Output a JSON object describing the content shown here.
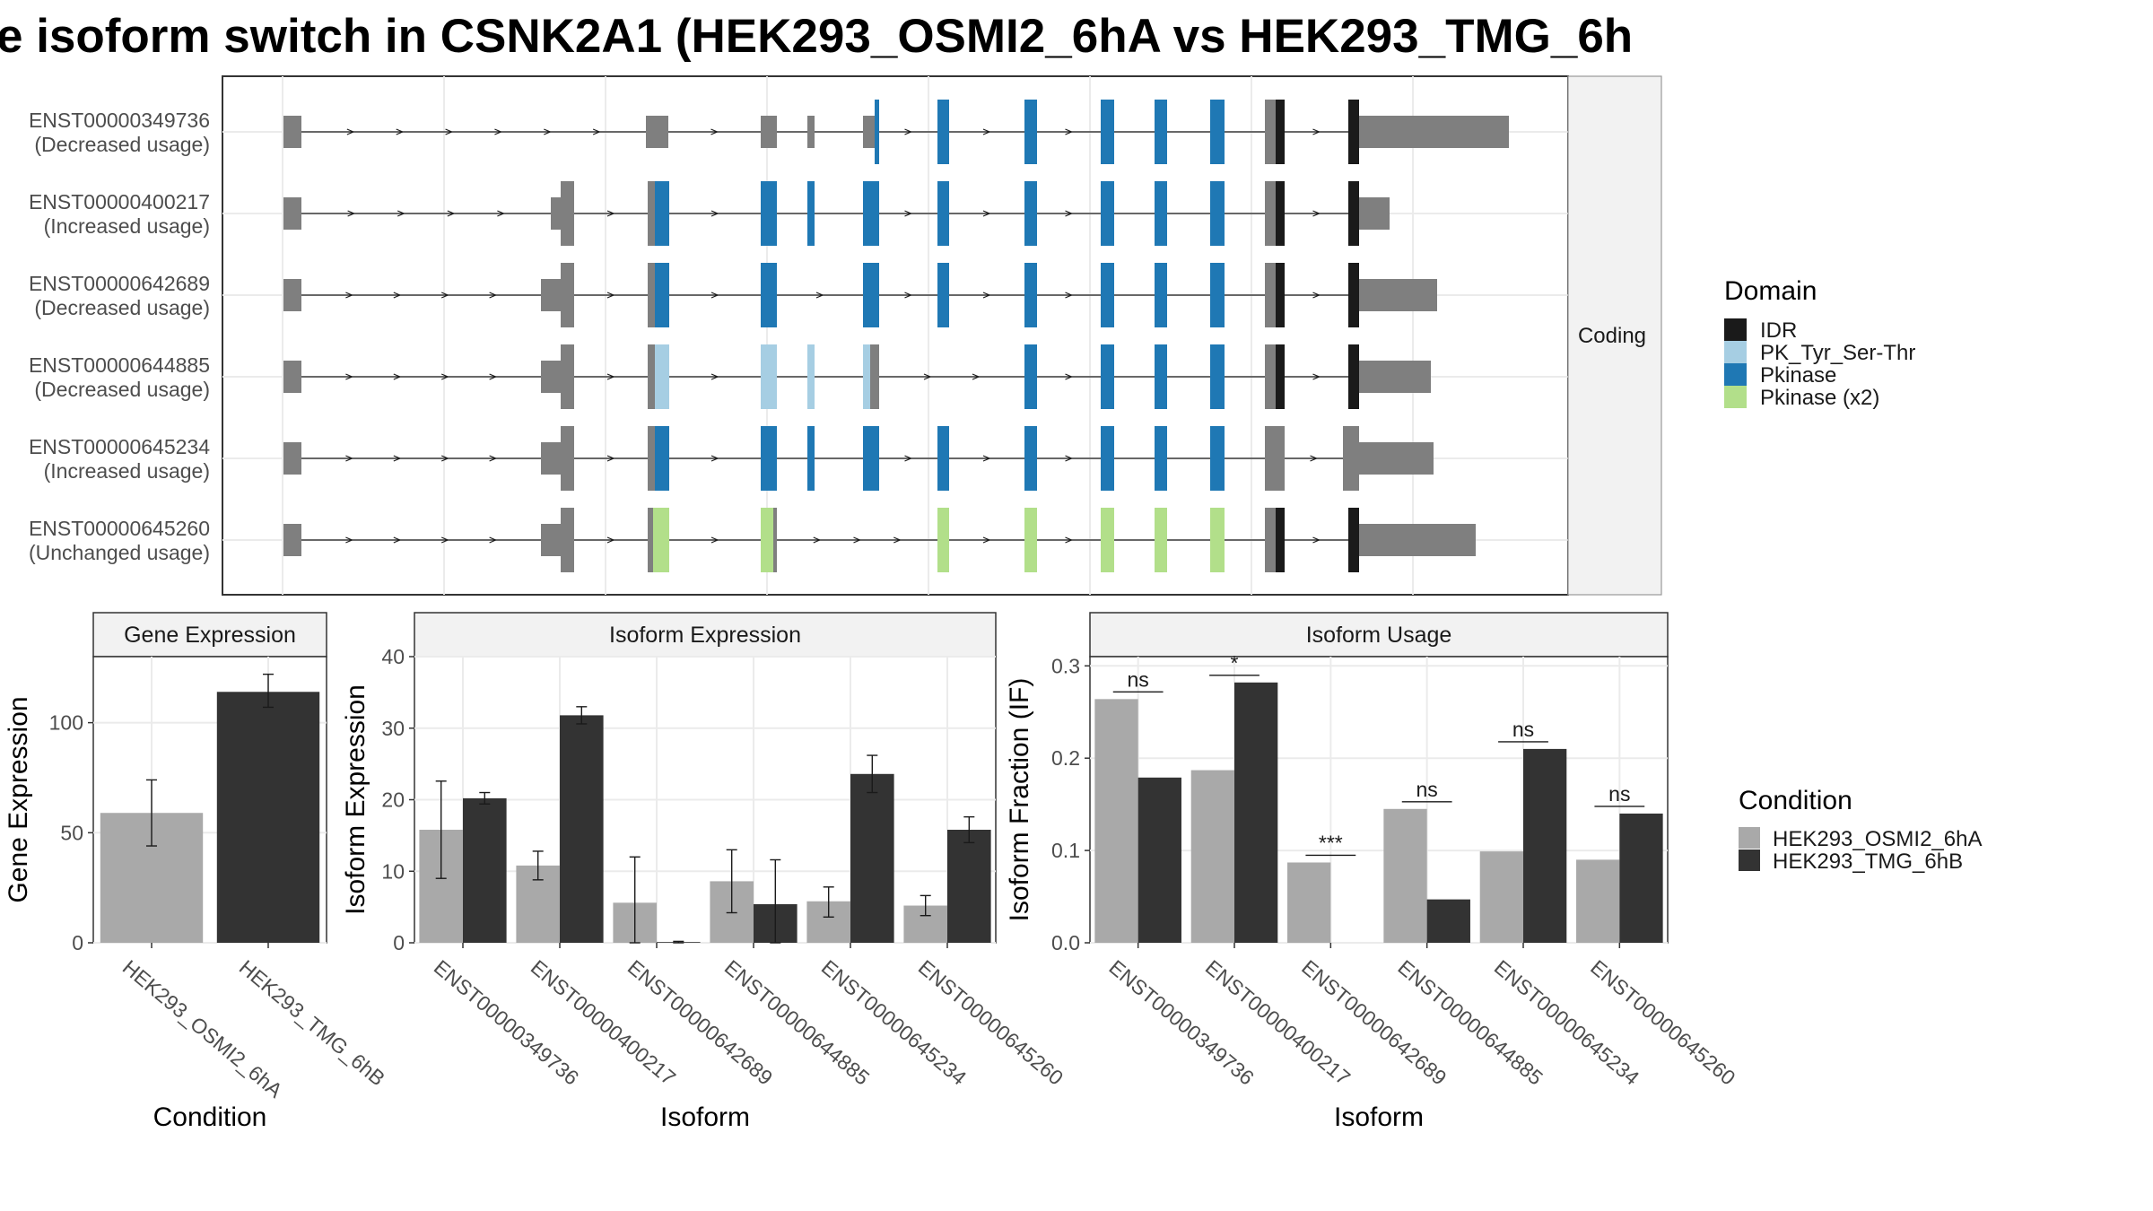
{
  "title": "e isoform switch in CSNK2A1 (HEK293_OSMI2_6hA vs HEK293_TMG_6h",
  "colors": {
    "idr": "#1a1a1a",
    "pk_tyr_ser_thr": "#a6cee3",
    "pkinase": "#1f78b4",
    "pkinase_x2": "#b2df8a",
    "noncoding_exon": "#7f7f7f",
    "cond_a": "#a9a9a9",
    "cond_b": "#333333"
  },
  "isoform_plot": {
    "strip_label": "Coding",
    "transcripts": [
      {
        "id": "ENST00000349736",
        "usage": "(Decreased usage)"
      },
      {
        "id": "ENST00000400217",
        "usage": "(Increased usage)"
      },
      {
        "id": "ENST00000642689",
        "usage": "(Decreased usage)"
      },
      {
        "id": "ENST00000644885",
        "usage": "(Decreased usage)"
      },
      {
        "id": "ENST00000645234",
        "usage": "(Increased usage)"
      },
      {
        "id": "ENST00000645260",
        "usage": "(Unchanged usage)"
      }
    ]
  },
  "legend_domain": {
    "title": "Domain",
    "items": [
      "IDR",
      "PK_Tyr_Ser-Thr",
      "Pkinase",
      "Pkinase (x2)"
    ]
  },
  "legend_condition": {
    "title": "Condition",
    "items": [
      "HEK293_OSMI2_6hA",
      "HEK293_TMG_6hB"
    ]
  },
  "chart_data": [
    {
      "type": "bar",
      "title": "Gene Expression",
      "xlabel": "Condition",
      "ylabel": "Gene Expression",
      "categories": [
        "HEK293_OSMI2_6hA",
        "HEK293_TMG_6hB"
      ],
      "values": [
        59,
        114
      ],
      "error_low": [
        44,
        107
      ],
      "error_high": [
        74,
        122
      ],
      "ylim": [
        0,
        130
      ],
      "yticks": [
        0,
        50,
        100
      ]
    },
    {
      "type": "bar",
      "title": "Isoform Expression",
      "xlabel": "Isoform",
      "ylabel": "Isoform Expression",
      "categories": [
        "ENST00000349736",
        "ENST00000400217",
        "ENST00000642689",
        "ENST00000644885",
        "ENST00000645234",
        "ENST00000645260"
      ],
      "series": [
        {
          "name": "HEK293_OSMI2_6hA",
          "values": [
            15.8,
            10.8,
            5.6,
            8.6,
            5.8,
            5.2
          ],
          "error_low": [
            9.0,
            8.8,
            0,
            4.2,
            3.6,
            3.8
          ],
          "error_high": [
            22.6,
            12.8,
            12.0,
            13.0,
            7.8,
            6.6
          ]
        },
        {
          "name": "HEK293_TMG_6hB",
          "values": [
            20.2,
            31.8,
            0.1,
            5.4,
            23.6,
            15.8
          ],
          "error_low": [
            19.4,
            30.6,
            0,
            0,
            21.0,
            14.0
          ],
          "error_high": [
            21.0,
            33.0,
            0.2,
            11.6,
            26.2,
            17.6
          ]
        }
      ],
      "ylim": [
        0,
        40
      ],
      "yticks": [
        0,
        10,
        20,
        30,
        40
      ]
    },
    {
      "type": "bar",
      "title": "Isoform Usage",
      "xlabel": "Isoform",
      "ylabel": "Isoform Fraction (IF)",
      "categories": [
        "ENST00000349736",
        "ENST00000400217",
        "ENST00000642689",
        "ENST00000644885",
        "ENST00000645234",
        "ENST00000645260"
      ],
      "series": [
        {
          "name": "HEK293_OSMI2_6hA",
          "values": [
            0.264,
            0.187,
            0.087,
            0.145,
            0.099,
            0.09
          ]
        },
        {
          "name": "HEK293_TMG_6hB",
          "values": [
            0.179,
            0.282,
            0.0,
            0.047,
            0.21,
            0.14
          ]
        }
      ],
      "significance": [
        "ns",
        "*",
        "***",
        "ns",
        "ns",
        "ns"
      ],
      "ylim": [
        0,
        0.31
      ],
      "yticks": [
        0.0,
        0.1,
        0.2,
        0.3
      ],
      "ytick_labels": [
        "0.0",
        "0.1",
        "0.2",
        "0.3"
      ]
    }
  ]
}
